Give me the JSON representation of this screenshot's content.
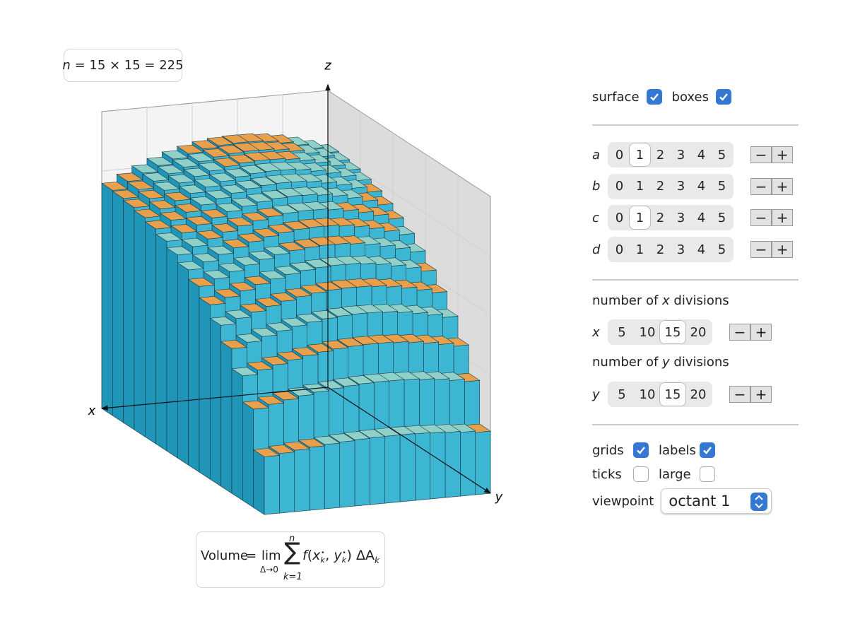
{
  "plot": {
    "count": {
      "symbol": "n",
      "text": "= 15 × 15 = 225"
    },
    "axes": {
      "x": "x",
      "y": "y",
      "z": "z"
    },
    "formula": {
      "lhs": "Volume",
      "eq": "=",
      "lim": "lim",
      "lim_sub": "Δ→0",
      "sum": "∑",
      "sum_top": "n",
      "sum_bottom": "k=1",
      "f": "f",
      "open": "(",
      "x": "x",
      "x_sup": "⋆",
      "x_sub": "k",
      "comma": ", ",
      "y": "y",
      "y_sup": "⋆",
      "y_sub": "k",
      "close": ")",
      "dA": "ΔA",
      "dA_sub": "k"
    }
  },
  "controls": {
    "top_checkboxes": [
      {
        "label": "surface",
        "checked": true
      },
      {
        "label": "boxes",
        "checked": true
      }
    ],
    "stepper": [
      "−",
      "+"
    ],
    "parameters": [
      {
        "name": "a",
        "options": [
          0,
          1,
          2,
          3,
          4,
          5
        ],
        "selected": 1
      },
      {
        "name": "b",
        "options": [
          0,
          1,
          2,
          3,
          4,
          5
        ]
      },
      {
        "name": "c",
        "options": [
          0,
          1,
          2,
          3,
          4,
          5
        ],
        "selected": 1
      },
      {
        "name": "d",
        "options": [
          0,
          1,
          2,
          3,
          4,
          5
        ]
      }
    ],
    "x_divisions": {
      "heading_before": "number of ",
      "heading_var": "x",
      "heading_after": " divisions",
      "name": "x",
      "options": [
        5,
        10,
        15,
        20
      ],
      "selected": 15
    },
    "y_divisions": {
      "heading_before": "number of ",
      "heading_var": "y",
      "heading_after": " divisions",
      "name": "y",
      "options": [
        5,
        10,
        15,
        20
      ],
      "selected": 15
    },
    "bottom_checkboxes": [
      {
        "label": "grids",
        "checked": true
      },
      {
        "label": "labels",
        "checked": true
      },
      {
        "label": "ticks",
        "checked": false
      },
      {
        "label": "large",
        "checked": false
      }
    ],
    "viewpoint": {
      "label": "viewpoint",
      "value": "octant 1"
    }
  }
}
